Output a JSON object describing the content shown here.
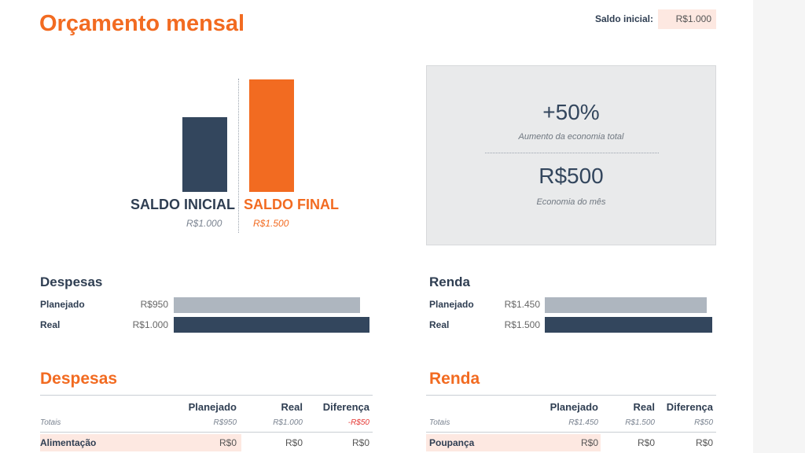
{
  "header": {
    "title": "Orçamento mensal",
    "saldo_label": "Saldo inicial:",
    "saldo_value": "R$1.000"
  },
  "balance_chart": {
    "initial": {
      "label": "SALDO INICIAL",
      "amount": "R$1.000",
      "value": 1000
    },
    "final": {
      "label": "SALDO FINAL",
      "amount": "R$1.500",
      "value": 1500
    }
  },
  "summary": {
    "increase_value": "+50%",
    "increase_label": "Aumento da economia total",
    "savings_value": "R$500",
    "savings_label": "Economia do mês"
  },
  "expenses_chart": {
    "title": "Despesas",
    "planned_label": "Planejado",
    "planned_amount": "R$950",
    "planned_value": 950,
    "actual_label": "Real",
    "actual_amount": "R$1.000",
    "actual_value": 1000
  },
  "income_chart": {
    "title": "Renda",
    "planned_label": "Planejado",
    "planned_amount": "R$1.450",
    "planned_value": 1450,
    "actual_label": "Real",
    "actual_amount": "R$1.500",
    "actual_value": 1500
  },
  "expenses_table": {
    "title": "Despesas",
    "columns": [
      "Planejado",
      "Real",
      "Diferença"
    ],
    "totals": {
      "label": "Totais",
      "planned": "R$950",
      "actual": "R$1.000",
      "difference": "-R$50"
    },
    "rows": [
      {
        "label": "Alimentação",
        "planned": "R$0",
        "actual": "R$0",
        "difference": "R$0"
      }
    ]
  },
  "income_table": {
    "title": "Renda",
    "columns": [
      "Planejado",
      "Real",
      "Diferença"
    ],
    "totals": {
      "label": "Totais",
      "planned": "R$1.450",
      "actual": "R$1.500",
      "difference": "R$50"
    },
    "rows": [
      {
        "label": "Poupança",
        "planned": "R$0",
        "actual": "R$0",
        "difference": "R$0"
      }
    ]
  },
  "colors": {
    "accent": "#f26b21",
    "navy": "#33465d",
    "planned_gray": "#aeb6bf",
    "negative": "#e53935"
  }
}
